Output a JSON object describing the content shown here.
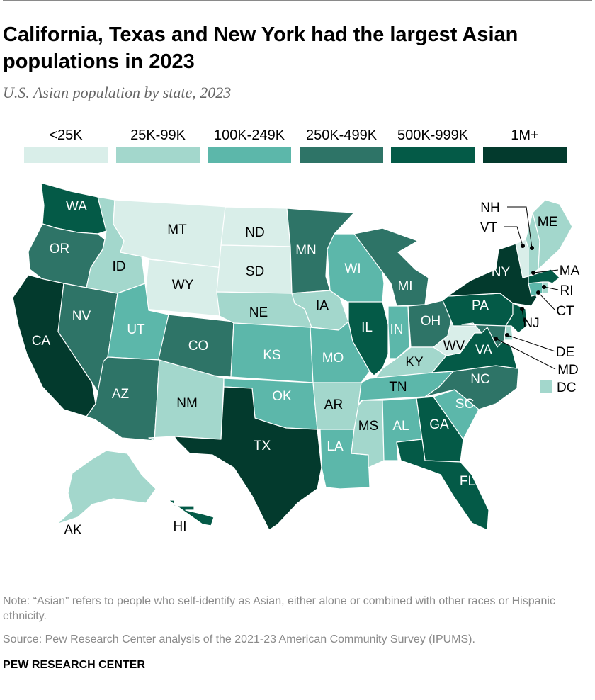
{
  "title": "California, Texas and New York had the largest Asian populations in 2023",
  "subtitle": "U.S. Asian population by state, 2023",
  "legend": [
    {
      "label": "<25K",
      "color": "#d9eee9"
    },
    {
      "label": "25K-99K",
      "color": "#a3d7cc"
    },
    {
      "label": "100K-249K",
      "color": "#5cb7aa"
    },
    {
      "label": "250K-499K",
      "color": "#2e7467"
    },
    {
      "label": "500K-999K",
      "color": "#045a47"
    },
    {
      "label": "1M+",
      "color": "#033a2d"
    }
  ],
  "chart_data": {
    "type": "choropleth",
    "bins": [
      "<25K",
      "25K-99K",
      "100K-249K",
      "250K-499K",
      "500K-999K",
      "1M+"
    ],
    "states": [
      {
        "abbr": "WA",
        "bin": 4
      },
      {
        "abbr": "OR",
        "bin": 3
      },
      {
        "abbr": "CA",
        "bin": 5
      },
      {
        "abbr": "NV",
        "bin": 3
      },
      {
        "abbr": "ID",
        "bin": 1
      },
      {
        "abbr": "MT",
        "bin": 0
      },
      {
        "abbr": "WY",
        "bin": 0
      },
      {
        "abbr": "UT",
        "bin": 2
      },
      {
        "abbr": "AZ",
        "bin": 3
      },
      {
        "abbr": "CO",
        "bin": 3
      },
      {
        "abbr": "NM",
        "bin": 1
      },
      {
        "abbr": "ND",
        "bin": 0
      },
      {
        "abbr": "SD",
        "bin": 0
      },
      {
        "abbr": "NE",
        "bin": 1
      },
      {
        "abbr": "KS",
        "bin": 2
      },
      {
        "abbr": "OK",
        "bin": 2
      },
      {
        "abbr": "TX",
        "bin": 5
      },
      {
        "abbr": "MN",
        "bin": 3
      },
      {
        "abbr": "IA",
        "bin": 1
      },
      {
        "abbr": "MO",
        "bin": 2
      },
      {
        "abbr": "AR",
        "bin": 1
      },
      {
        "abbr": "LA",
        "bin": 2
      },
      {
        "abbr": "WI",
        "bin": 2
      },
      {
        "abbr": "IL",
        "bin": 4
      },
      {
        "abbr": "MI",
        "bin": 3
      },
      {
        "abbr": "IN",
        "bin": 2
      },
      {
        "abbr": "OH",
        "bin": 3
      },
      {
        "abbr": "KY",
        "bin": 1
      },
      {
        "abbr": "TN",
        "bin": 2
      },
      {
        "abbr": "MS",
        "bin": 1
      },
      {
        "abbr": "AL",
        "bin": 2
      },
      {
        "abbr": "GA",
        "bin": 4
      },
      {
        "abbr": "FL",
        "bin": 4
      },
      {
        "abbr": "SC",
        "bin": 2
      },
      {
        "abbr": "NC",
        "bin": 3
      },
      {
        "abbr": "VA",
        "bin": 4
      },
      {
        "abbr": "WV",
        "bin": 0
      },
      {
        "abbr": "PA",
        "bin": 4
      },
      {
        "abbr": "NY",
        "bin": 5
      },
      {
        "abbr": "NJ",
        "bin": 4
      },
      {
        "abbr": "DE",
        "bin": 1
      },
      {
        "abbr": "MD",
        "bin": 3
      },
      {
        "abbr": "DC",
        "bin": 1
      },
      {
        "abbr": "CT",
        "bin": 2
      },
      {
        "abbr": "RI",
        "bin": 1
      },
      {
        "abbr": "MA",
        "bin": 4
      },
      {
        "abbr": "VT",
        "bin": 0
      },
      {
        "abbr": "NH",
        "bin": 1
      },
      {
        "abbr": "ME",
        "bin": 1
      },
      {
        "abbr": "AK",
        "bin": 1
      },
      {
        "abbr": "HI",
        "bin": 4
      }
    ]
  },
  "note": "Note: “Asian” refers to people who self-identify as Asian, either alone or combined with other races or Hispanic ethnicity.",
  "source": "Source: Pew Research Center analysis of the 2021-23 American Community Survey (IPUMS).",
  "footer": "PEW RESEARCH CENTER"
}
